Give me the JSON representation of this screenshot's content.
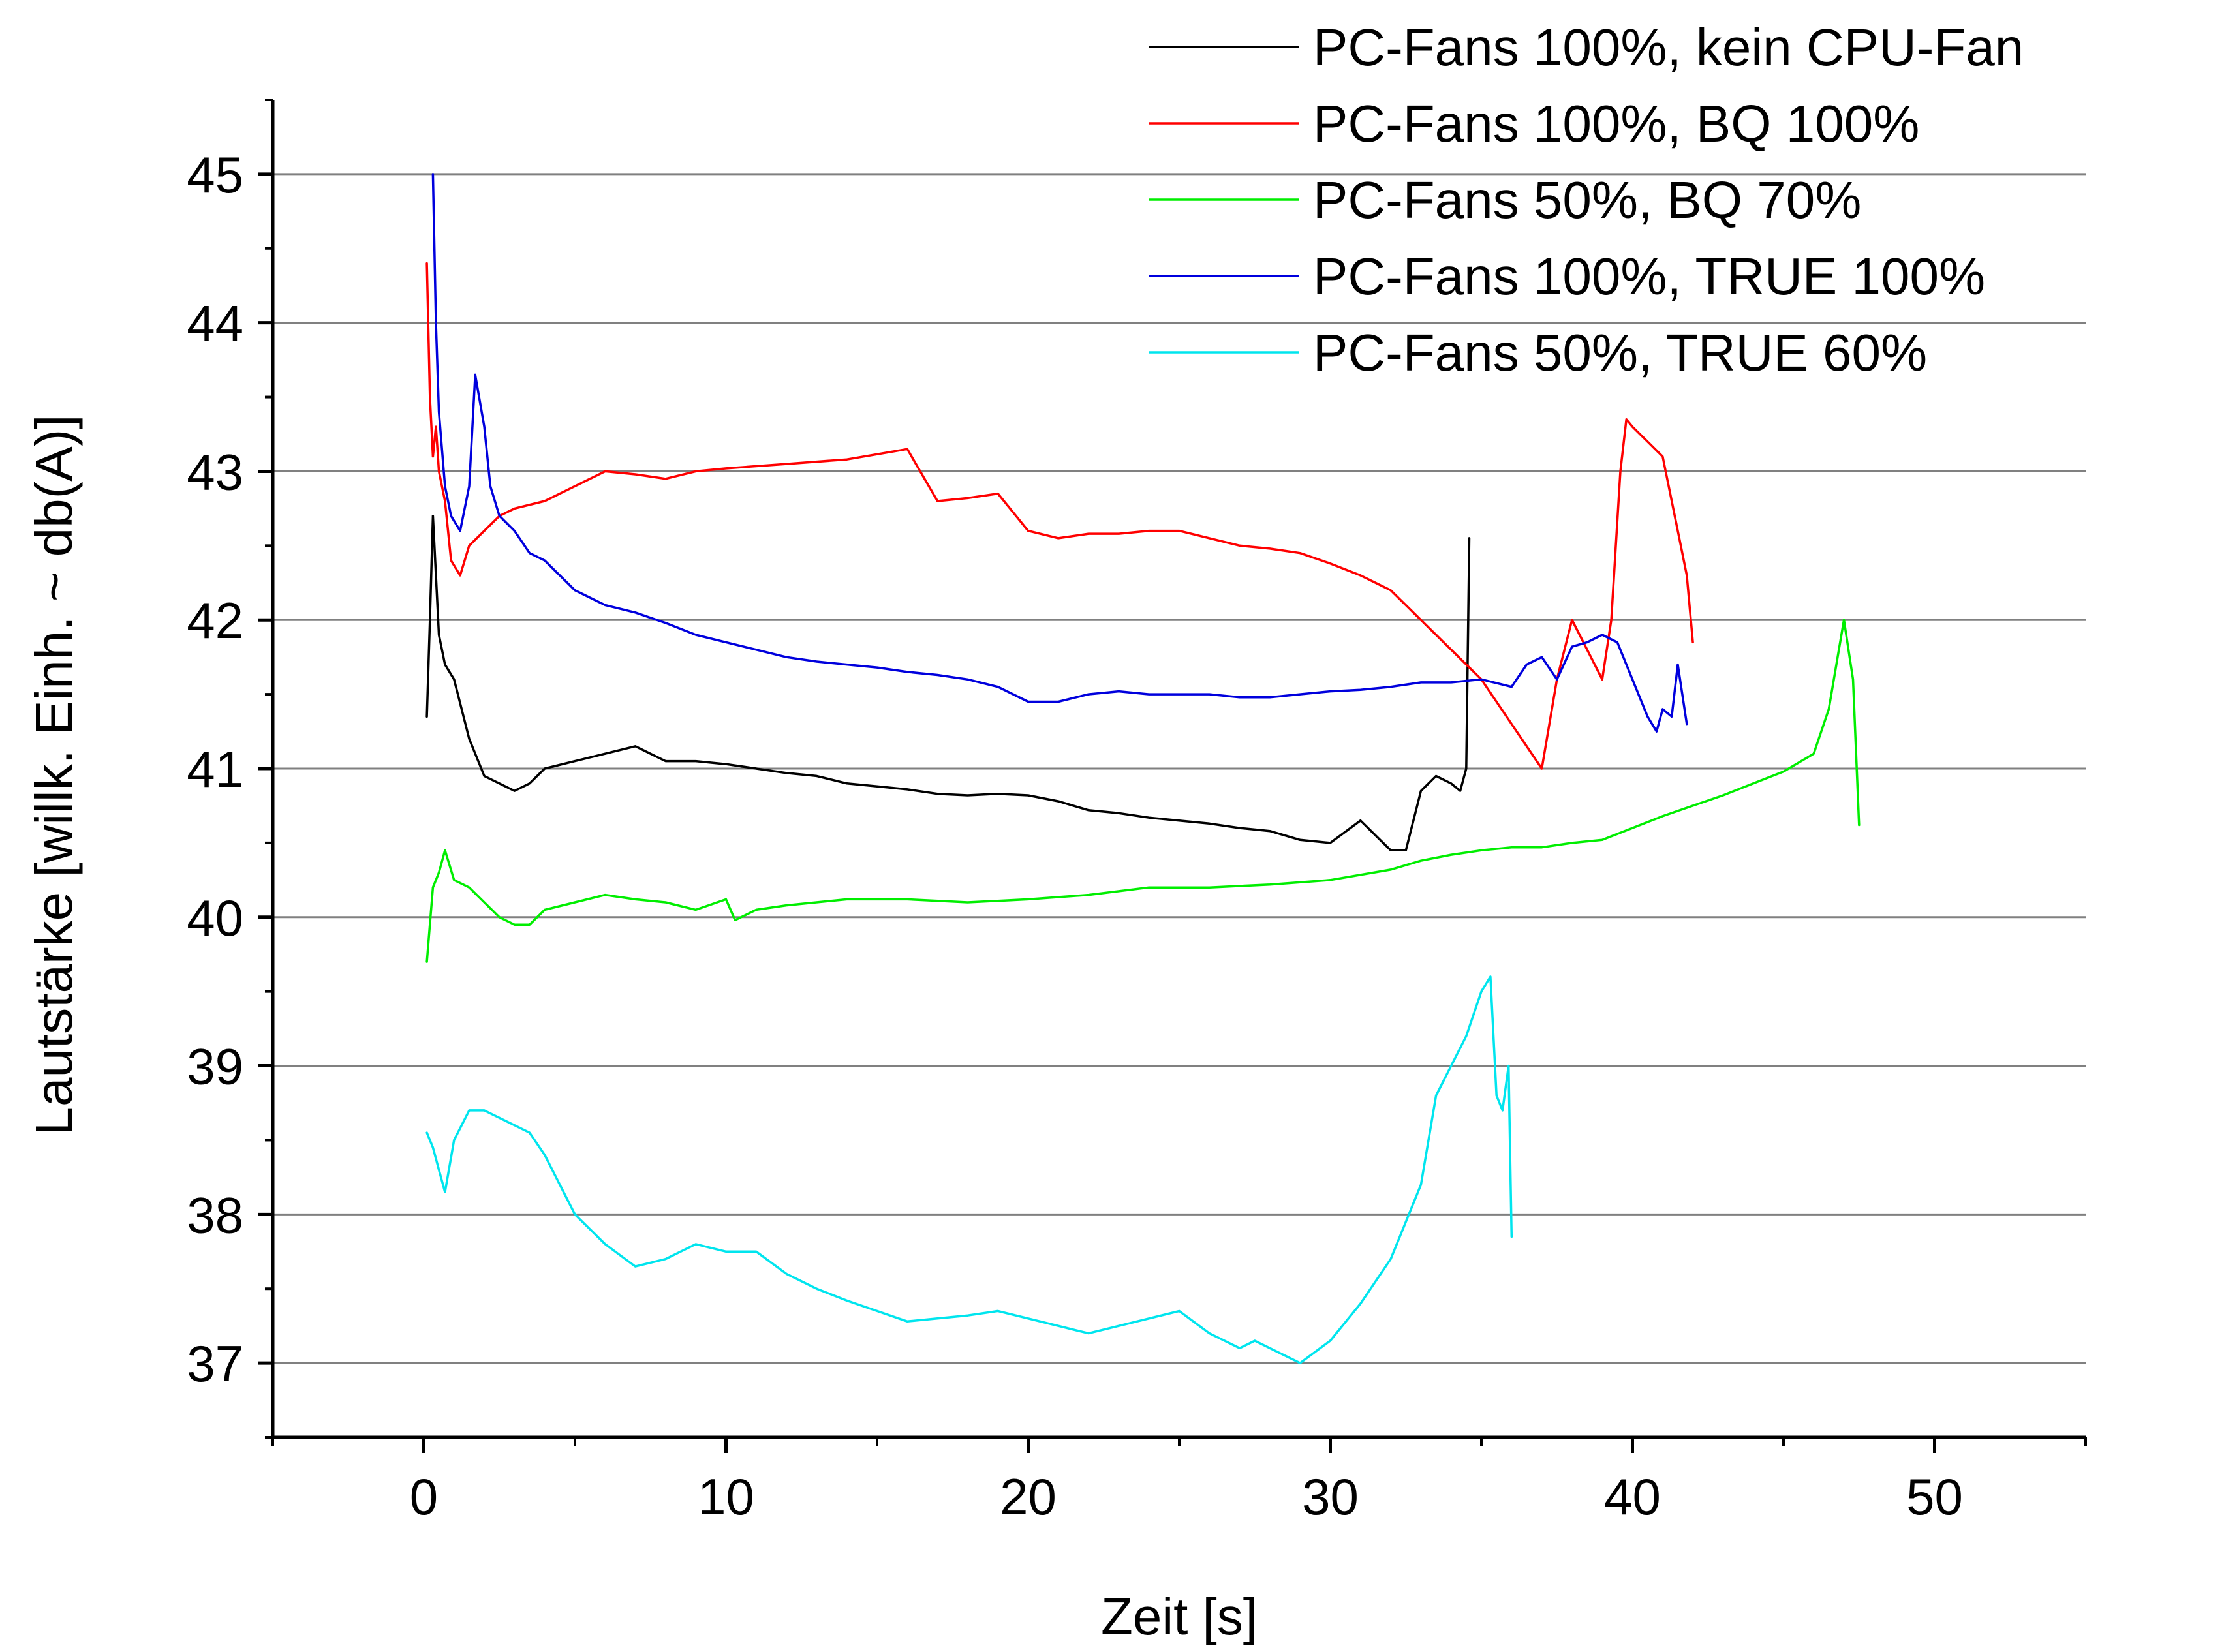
{
  "chart_data": {
    "type": "line",
    "title": "",
    "xlabel": "Zeit [s]",
    "ylabel": "Lautstärke [willk. Einh. ~ db(A)]",
    "xlim": [
      -5,
      55
    ],
    "ylim": [
      36.5,
      45.5
    ],
    "xticks": [
      0,
      10,
      20,
      30,
      40,
      50
    ],
    "yticks": [
      37,
      38,
      39,
      40,
      41,
      42,
      43,
      44,
      45
    ],
    "grid": "horizontal",
    "legend_position": "top-right",
    "series": [
      {
        "name": "PC-Fans 100%, kein CPU-Fan",
        "color": "#000000",
        "x": [
          0.1,
          0.2,
          0.3,
          0.4,
          0.5,
          0.7,
          1.0,
          1.5,
          2.0,
          2.5,
          3.0,
          3.5,
          4.0,
          5.0,
          6.0,
          7.0,
          8.0,
          9.0,
          10.0,
          11.0,
          12.0,
          13.0,
          14.0,
          15.0,
          16.0,
          17.0,
          18.0,
          19.0,
          20.0,
          21.0,
          22.0,
          23.0,
          24.0,
          25.0,
          26.0,
          27.0,
          28.0,
          29.0,
          30.0,
          31.0,
          31.5,
          32.0,
          32.5,
          33.0,
          33.5,
          34.0,
          34.3,
          34.5,
          34.6
        ],
        "values": [
          41.35,
          42.0,
          42.7,
          42.3,
          41.9,
          41.7,
          41.6,
          41.2,
          40.95,
          40.9,
          40.85,
          40.9,
          41.0,
          41.05,
          41.1,
          41.15,
          41.05,
          41.05,
          41.03,
          41.0,
          40.97,
          40.95,
          40.9,
          40.88,
          40.86,
          40.83,
          40.82,
          40.83,
          40.82,
          40.78,
          40.72,
          40.7,
          40.67,
          40.65,
          40.63,
          40.6,
          40.58,
          40.52,
          40.5,
          40.65,
          40.55,
          40.45,
          40.45,
          40.85,
          40.95,
          40.9,
          40.85,
          41.0,
          42.55
        ]
      },
      {
        "name": "PC-Fans 100%, BQ 100%",
        "color": "#ff0000",
        "x": [
          0.1,
          0.2,
          0.3,
          0.4,
          0.5,
          0.7,
          0.9,
          1.2,
          1.5,
          2.0,
          2.5,
          3.0,
          4.0,
          5.0,
          6.0,
          7.0,
          8.0,
          9.0,
          10.0,
          12.0,
          14.0,
          16.0,
          17.0,
          18.0,
          19.0,
          20.0,
          21.0,
          22.0,
          23.0,
          24.0,
          25.0,
          26.0,
          27.0,
          28.0,
          29.0,
          30.0,
          31.0,
          32.0,
          33.0,
          34.0,
          35.0,
          36.0,
          37.0,
          37.5,
          38.0,
          38.5,
          39.0,
          39.3,
          39.6,
          39.8,
          40.0,
          40.5,
          41.0,
          41.5,
          41.8,
          42.0
        ],
        "values": [
          44.4,
          43.5,
          43.1,
          43.3,
          43.0,
          42.8,
          42.4,
          42.3,
          42.5,
          42.6,
          42.7,
          42.75,
          42.8,
          42.9,
          43.0,
          42.98,
          42.95,
          43.0,
          43.02,
          43.05,
          43.08,
          43.15,
          42.8,
          42.82,
          42.85,
          42.6,
          42.55,
          42.58,
          42.58,
          42.6,
          42.6,
          42.55,
          42.5,
          42.48,
          42.45,
          42.38,
          42.3,
          42.2,
          42.0,
          41.8,
          41.6,
          41.3,
          41.0,
          41.6,
          42.0,
          41.8,
          41.6,
          42.0,
          43.0,
          43.35,
          43.3,
          43.2,
          43.1,
          42.6,
          42.3,
          41.85
        ]
      },
      {
        "name": "PC-Fans 50%, BQ 70%",
        "color": "#00ee00",
        "x": [
          0.1,
          0.3,
          0.5,
          0.7,
          1.0,
          1.5,
          2.0,
          2.5,
          3.0,
          3.5,
          4.0,
          5.0,
          6.0,
          7.0,
          8.0,
          9.0,
          10.0,
          10.3,
          11.0,
          12.0,
          14.0,
          16.0,
          18.0,
          20.0,
          22.0,
          24.0,
          26.0,
          28.0,
          30.0,
          32.0,
          33.0,
          34.0,
          35.0,
          36.0,
          37.0,
          38.0,
          39.0,
          40.0,
          41.0,
          42.0,
          43.0,
          44.0,
          45.0,
          46.0,
          46.5,
          47.0,
          47.3,
          47.5
        ],
        "values": [
          39.7,
          40.2,
          40.3,
          40.45,
          40.25,
          40.2,
          40.1,
          40.0,
          39.95,
          39.95,
          40.05,
          40.1,
          40.15,
          40.12,
          40.1,
          40.05,
          40.12,
          39.98,
          40.05,
          40.08,
          40.12,
          40.12,
          40.1,
          40.12,
          40.15,
          40.2,
          40.2,
          40.22,
          40.25,
          40.32,
          40.38,
          40.42,
          40.45,
          40.47,
          40.47,
          40.5,
          40.52,
          40.6,
          40.68,
          40.75,
          40.82,
          40.9,
          40.98,
          41.1,
          41.4,
          42.0,
          41.6,
          40.62
        ]
      },
      {
        "name": "PC-Fans 100%, TRUE 100%",
        "color": "#0000dd",
        "x": [
          0.3,
          0.4,
          0.5,
          0.7,
          0.9,
          1.2,
          1.5,
          1.7,
          2.0,
          2.2,
          2.5,
          3.0,
          3.5,
          4.0,
          5.0,
          6.0,
          7.0,
          8.0,
          9.0,
          10.0,
          11.0,
          12.0,
          13.0,
          14.0,
          15.0,
          16.0,
          17.0,
          18.0,
          19.0,
          20.0,
          21.0,
          22.0,
          23.0,
          24.0,
          25.0,
          26.0,
          27.0,
          28.0,
          29.0,
          30.0,
          31.0,
          32.0,
          33.0,
          34.0,
          35.0,
          36.0,
          36.5,
          37.0,
          37.5,
          38.0,
          38.5,
          39.0,
          39.5,
          40.0,
          40.5,
          40.8,
          41.0,
          41.3,
          41.5,
          41.8
        ],
        "values": [
          45.0,
          44.0,
          43.4,
          42.9,
          42.7,
          42.6,
          42.9,
          43.65,
          43.3,
          42.9,
          42.7,
          42.6,
          42.45,
          42.4,
          42.2,
          42.1,
          42.05,
          41.98,
          41.9,
          41.85,
          41.8,
          41.75,
          41.72,
          41.7,
          41.68,
          41.65,
          41.63,
          41.6,
          41.55,
          41.45,
          41.45,
          41.5,
          41.52,
          41.5,
          41.5,
          41.5,
          41.48,
          41.48,
          41.5,
          41.52,
          41.53,
          41.55,
          41.58,
          41.58,
          41.6,
          41.55,
          41.7,
          41.75,
          41.6,
          41.82,
          41.85,
          41.9,
          41.85,
          41.6,
          41.35,
          41.25,
          41.4,
          41.35,
          41.7,
          41.3
        ]
      },
      {
        "name": "PC-Fans 50%, TRUE 60%",
        "color": "#00e5ee",
        "x": [
          0.1,
          0.3,
          0.5,
          0.7,
          1.0,
          1.5,
          2.0,
          2.5,
          3.0,
          3.5,
          4.0,
          5.0,
          6.0,
          7.0,
          8.0,
          9.0,
          10.0,
          11.0,
          12.0,
          13.0,
          14.0,
          15.0,
          16.0,
          17.0,
          18.0,
          19.0,
          20.0,
          21.0,
          22.0,
          23.0,
          24.0,
          25.0,
          26.0,
          27.0,
          27.5,
          28.0,
          28.5,
          29.0,
          30.0,
          31.0,
          32.0,
          33.0,
          33.5,
          34.0,
          34.5,
          35.0,
          35.3,
          35.5,
          35.7,
          35.9,
          36.0
        ],
        "values": [
          38.55,
          38.45,
          38.3,
          38.15,
          38.5,
          38.7,
          38.7,
          38.65,
          38.6,
          38.55,
          38.4,
          38.0,
          37.8,
          37.65,
          37.7,
          37.8,
          37.75,
          37.75,
          37.6,
          37.5,
          37.42,
          37.35,
          37.28,
          37.3,
          37.32,
          37.35,
          37.3,
          37.25,
          37.2,
          37.25,
          37.3,
          37.35,
          37.2,
          37.1,
          37.15,
          37.1,
          37.05,
          37.0,
          37.15,
          37.4,
          37.7,
          38.2,
          38.8,
          39.0,
          39.2,
          39.5,
          39.6,
          38.8,
          38.7,
          39.0,
          37.85
        ]
      }
    ]
  }
}
